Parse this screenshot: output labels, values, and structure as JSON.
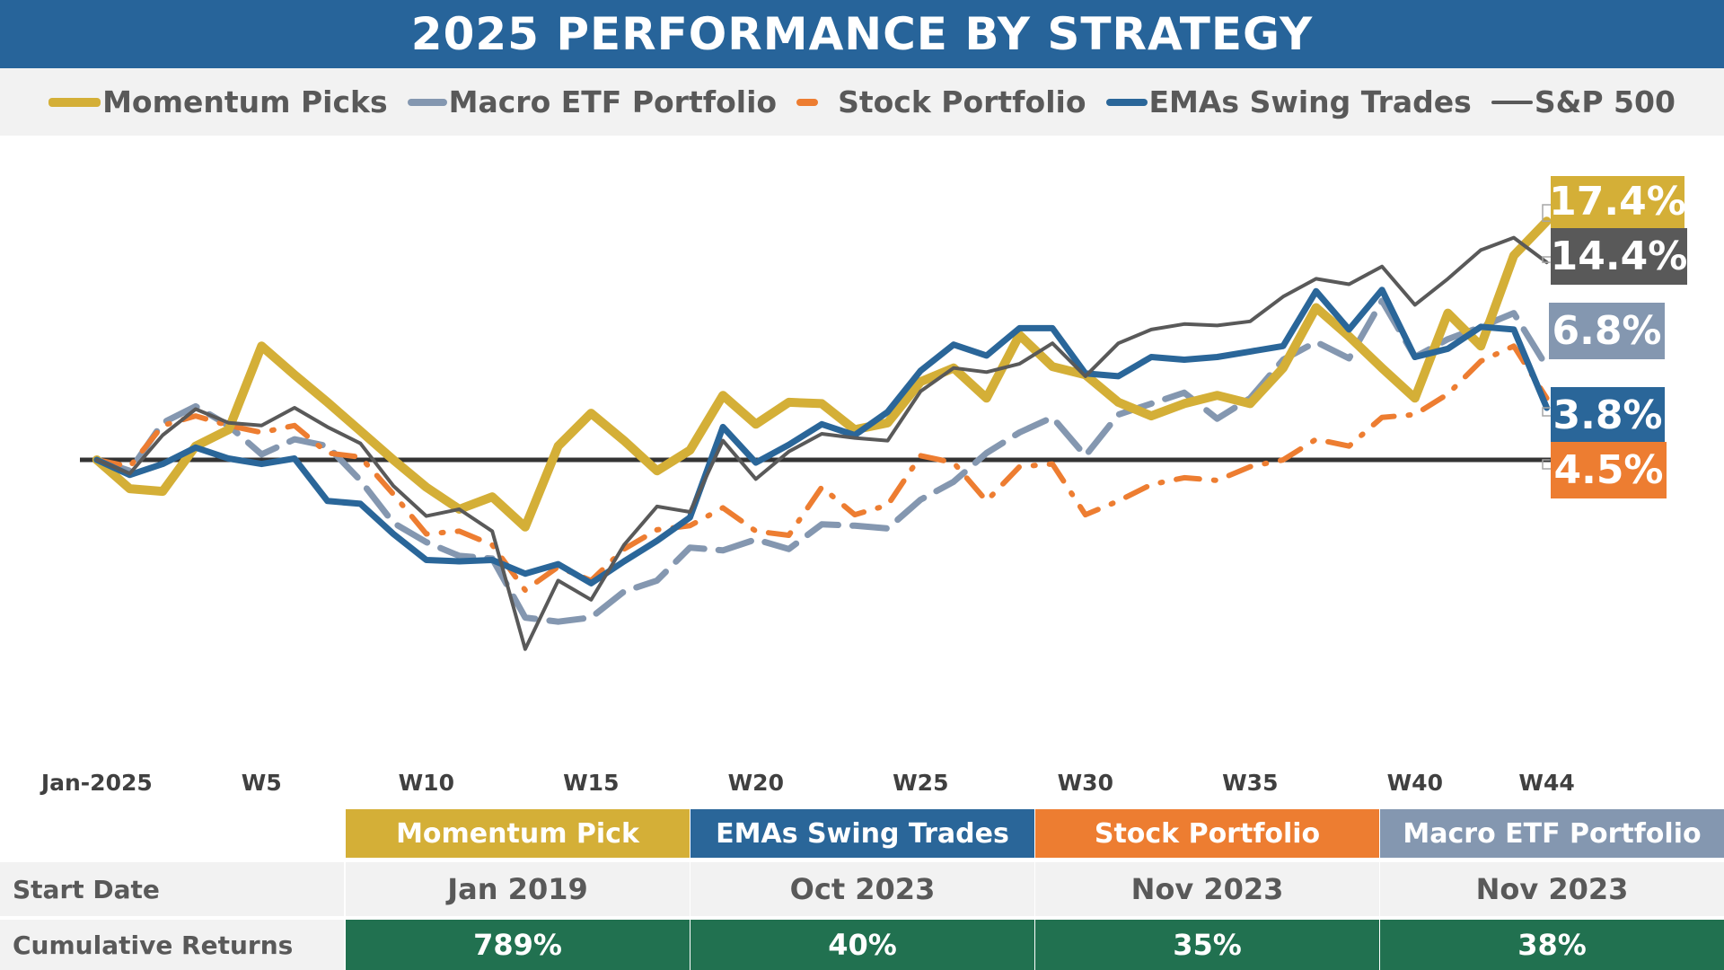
{
  "title": "2025 PERFORMANCE BY STRATEGY",
  "legend": [
    {
      "label": "Momentum Picks",
      "color": "#D4AF37"
    },
    {
      "label": "Macro ETF Portfolio",
      "color": "#8497B0"
    },
    {
      "label": "Stock Portfolio",
      "color": "#ED7D31"
    },
    {
      "label": "EMAs Swing Trades",
      "color": "#2A6699"
    },
    {
      "label": "S&P 500",
      "color": "#595959"
    }
  ],
  "chart_data": {
    "type": "line",
    "title": "2025 PERFORMANCE BY STRATEGY",
    "xlabel": "",
    "ylabel": "",
    "x": [
      0,
      1,
      2,
      3,
      4,
      5,
      6,
      7,
      8,
      9,
      10,
      11,
      12,
      13,
      14,
      15,
      16,
      17,
      18,
      19,
      20,
      21,
      22,
      23,
      24,
      25,
      26,
      27,
      28,
      29,
      30,
      31,
      32,
      33,
      34,
      35,
      36,
      37,
      38,
      39,
      40,
      41,
      42,
      43,
      44
    ],
    "x_tick_labels": [
      {
        "week": 0,
        "label": "Jan-2025"
      },
      {
        "week": 5,
        "label": "W5"
      },
      {
        "week": 10,
        "label": "W10"
      },
      {
        "week": 15,
        "label": "W15"
      },
      {
        "week": 20,
        "label": "W20"
      },
      {
        "week": 25,
        "label": "W25"
      },
      {
        "week": 30,
        "label": "W30"
      },
      {
        "week": 35,
        "label": "W35"
      },
      {
        "week": 40,
        "label": "W40"
      },
      {
        "week": 44,
        "label": "W44"
      }
    ],
    "y_unit": "%",
    "ylim": [
      -17,
      23
    ],
    "grid": false,
    "legend_position": "top",
    "series": [
      {
        "name": "Macro ETF Portfolio",
        "color": "#8497B0",
        "style": "dash",
        "end_label": "6.8%",
        "values": [
          0,
          -0.8,
          2.7,
          3.9,
          2.5,
          0.4,
          1.5,
          1.0,
          -1.5,
          -4.6,
          -6.0,
          -7.0,
          -7.2,
          -11.5,
          -11.8,
          -11.5,
          -9.6,
          -8.8,
          -6.4,
          -6.6,
          -5.8,
          -6.5,
          -4.7,
          -4.8,
          -5.0,
          -2.9,
          -1.6,
          0.5,
          2.0,
          3.1,
          0.3,
          3.3,
          4.1,
          4.9,
          3.0,
          4.5,
          7.3,
          8.6,
          7.4,
          11.6,
          7.5,
          8.8,
          9.7,
          10.7,
          6.8
        ]
      },
      {
        "name": "Stock Portfolio",
        "color": "#ED7D31",
        "style": "dashdot",
        "end_label": "4.5%",
        "values": [
          0,
          -0.5,
          2.5,
          3.2,
          2.5,
          2.0,
          2.5,
          0.5,
          0.2,
          -2.5,
          -5.4,
          -5.2,
          -6.2,
          -9.5,
          -7.8,
          -8.8,
          -6.5,
          -5.1,
          -4.8,
          -3.5,
          -5.2,
          -5.5,
          -2.0,
          -4.0,
          -3.3,
          0.3,
          -0.2,
          -3.0,
          -0.5,
          -0.3,
          -4.0,
          -3.0,
          -1.8,
          -1.3,
          -1.5,
          -0.5,
          0.0,
          1.5,
          1.0,
          3.1,
          3.3,
          4.8,
          7.2,
          8.3,
          4.5
        ]
      },
      {
        "name": "Momentum Picks",
        "color": "#D4AF37",
        "style": "solid",
        "end_label": "17.4%",
        "values": [
          0,
          -2.1,
          -2.3,
          1.0,
          2.2,
          8.3,
          6.2,
          4.2,
          2.1,
          0,
          -2.0,
          -3.6,
          -2.7,
          -4.9,
          1.0,
          3.4,
          1.4,
          -0.8,
          0.7,
          4.7,
          2.6,
          4.2,
          4.1,
          2.2,
          2.7,
          5.7,
          6.7,
          4.5,
          9.1,
          6.8,
          6.2,
          4.2,
          3.2,
          4.1,
          4.7,
          4.1,
          6.7,
          11.1,
          9.0,
          6.7,
          4.5,
          10.7,
          8.3,
          14.9,
          17.4
        ]
      },
      {
        "name": "EMAs Swing Trades",
        "color": "#2A6699",
        "style": "solid",
        "end_label": "3.8%",
        "values": [
          0,
          -1.1,
          -0.3,
          0.9,
          0.1,
          -0.3,
          0.1,
          -3.0,
          -3.2,
          -5.4,
          -7.3,
          -7.4,
          -7.3,
          -8.3,
          -7.6,
          -9.0,
          -7.4,
          -5.9,
          -4.2,
          2.4,
          -0.2,
          1.1,
          2.6,
          1.8,
          3.5,
          6.5,
          8.4,
          7.6,
          9.6,
          9.6,
          6.3,
          6.1,
          7.5,
          7.3,
          7.5,
          7.9,
          8.3,
          12.3,
          9.5,
          12.4,
          7.5,
          8.1,
          9.7,
          9.5,
          3.8
        ]
      },
      {
        "name": "S&P 500",
        "color": "#595959",
        "style": "thin",
        "end_label": "14.4%",
        "values": [
          0,
          -1.0,
          1.8,
          3.7,
          2.7,
          2.5,
          3.8,
          2.4,
          1.2,
          -1.9,
          -4.1,
          -3.6,
          -5.2,
          -13.8,
          -8.8,
          -10.2,
          -6.2,
          -3.4,
          -3.8,
          1.4,
          -1.4,
          0.6,
          1.9,
          1.6,
          1.4,
          5.0,
          6.7,
          6.4,
          7.0,
          8.5,
          6.1,
          8.5,
          9.5,
          9.9,
          9.8,
          10.1,
          11.9,
          13.2,
          12.8,
          14.1,
          11.3,
          13.2,
          15.3,
          16.2,
          14.4
        ]
      }
    ]
  },
  "end_labels": {
    "momentum": "17.4%",
    "sp500": "14.4%",
    "macro": "6.8%",
    "emas": "3.8%",
    "stock": "4.5%"
  },
  "table": {
    "columns": [
      {
        "name": "Momentum Pick",
        "color": "#D4AF37",
        "start_date": "Jan 2019",
        "cumulative": "789%"
      },
      {
        "name": "EMAs Swing Trades",
        "color": "#2A6699",
        "start_date": "Oct 2023",
        "cumulative": "40%"
      },
      {
        "name": "Stock Portfolio",
        "color": "#ED7D31",
        "start_date": "Nov 2023",
        "cumulative": "35%"
      },
      {
        "name": "Macro ETF Portfolio",
        "color": "#8497B0",
        "start_date": "Nov 2023",
        "cumulative": "38%"
      }
    ],
    "row_labels": {
      "start_date": "Start Date",
      "cumulative": "Cumulative Returns"
    },
    "cumulative_bg": "#217150"
  }
}
